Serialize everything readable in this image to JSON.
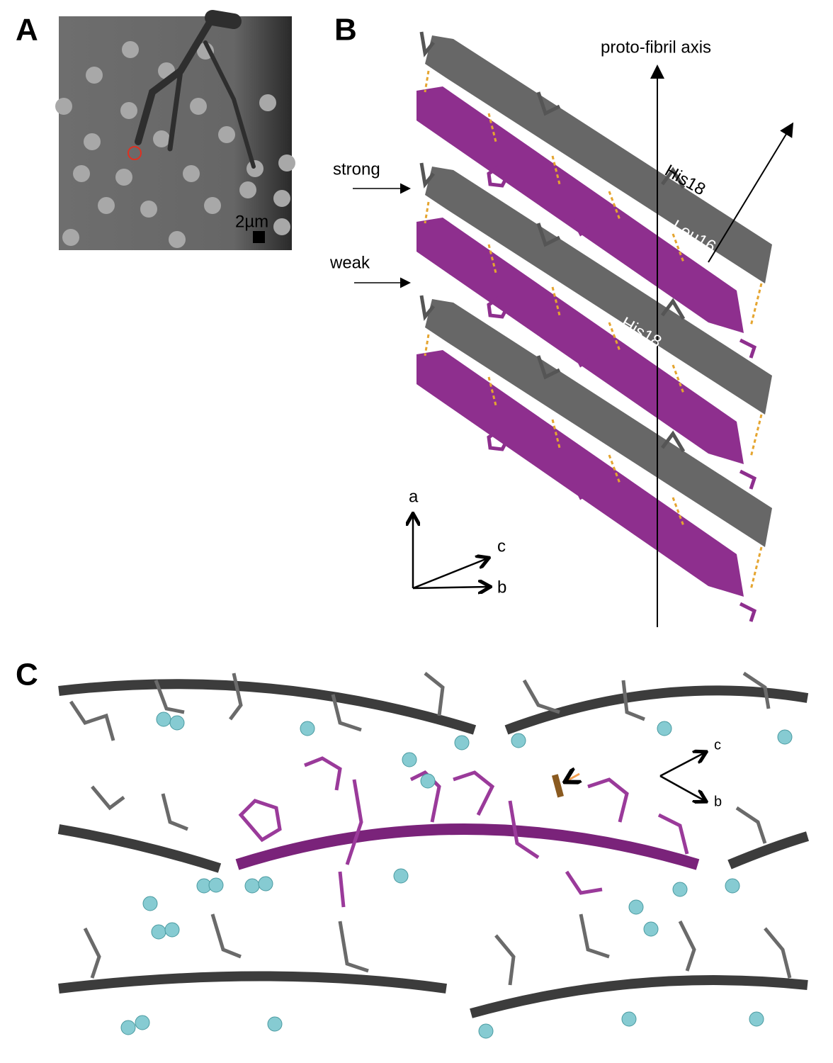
{
  "panels": [
    {
      "label": "A",
      "scale_bar": "2µm"
    },
    {
      "label": "B",
      "axis_label": "proto-fibril axis",
      "interfaces": [
        "strong",
        "weak"
      ],
      "residues": [
        "His18",
        "Leu16",
        "His18"
      ],
      "axes": [
        "a",
        "c",
        "b"
      ]
    },
    {
      "label": "C",
      "axes": [
        "c",
        "b"
      ]
    }
  ]
}
